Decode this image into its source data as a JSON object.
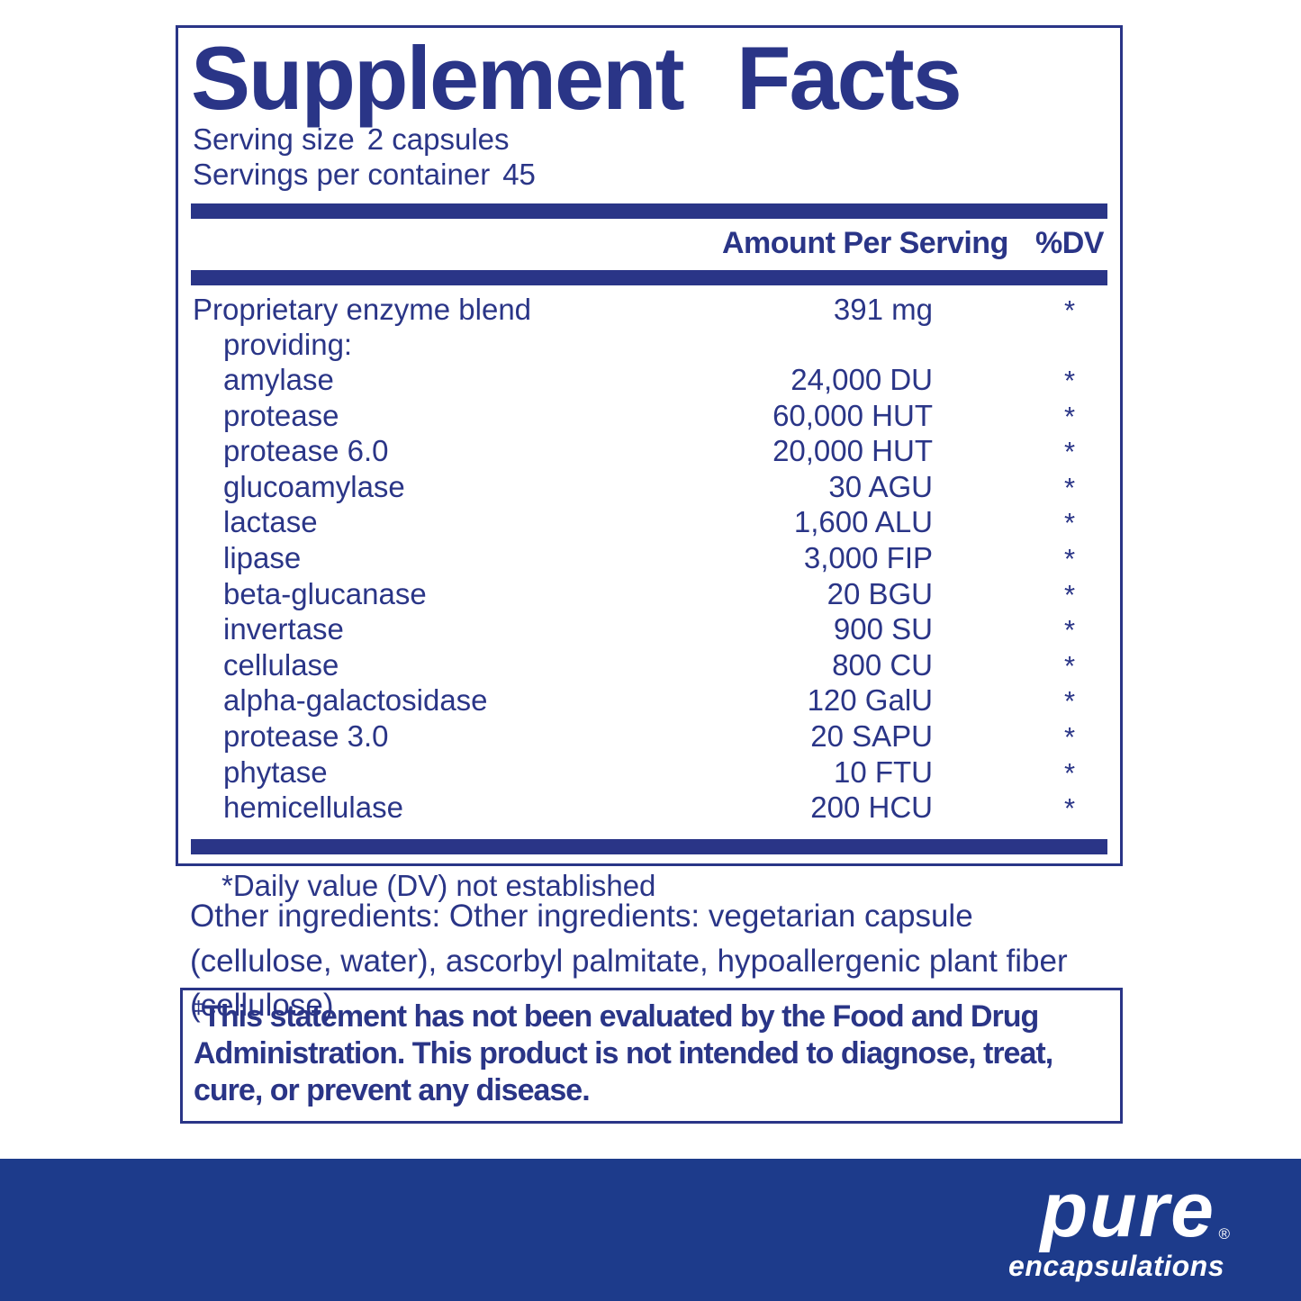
{
  "panel": {
    "title": "Supplement Facts",
    "serving_size_label": "Serving size",
    "serving_size_value": "2 capsules",
    "servings_per_container_label": "Servings per container",
    "servings_per_container_value": "45",
    "columns": {
      "amount": "Amount Per Serving",
      "dv": "%DV"
    },
    "rows": [
      {
        "name": "Proprietary enzyme blend",
        "amount": "391 mg",
        "dv": "*",
        "indent": false
      },
      {
        "name": "providing:",
        "amount": "",
        "dv": "",
        "indent": true
      },
      {
        "name": "amylase",
        "amount": "24,000 DU",
        "dv": "*",
        "indent": true
      },
      {
        "name": "protease",
        "amount": "60,000 HUT",
        "dv": "*",
        "indent": true
      },
      {
        "name": "protease 6.0",
        "amount": "20,000 HUT",
        "dv": "*",
        "indent": true
      },
      {
        "name": "glucoamylase",
        "amount": "30 AGU",
        "dv": "*",
        "indent": true
      },
      {
        "name": "lactase",
        "amount": "1,600 ALU",
        "dv": "*",
        "indent": true
      },
      {
        "name": "lipase",
        "amount": "3,000 FIP",
        "dv": "*",
        "indent": true
      },
      {
        "name": "beta-glucanase",
        "amount": "20 BGU",
        "dv": "*",
        "indent": true
      },
      {
        "name": "invertase",
        "amount": "900 SU",
        "dv": "*",
        "indent": true
      },
      {
        "name": "cellulase",
        "amount": "800 CU",
        "dv": "*",
        "indent": true
      },
      {
        "name": "alpha-galactosidase",
        "amount": "120 GalU",
        "dv": "*",
        "indent": true
      },
      {
        "name": "protease 3.0",
        "amount": "20 SAPU",
        "dv": "*",
        "indent": true
      },
      {
        "name": "phytase",
        "amount": "10 FTU",
        "dv": "*",
        "indent": true
      },
      {
        "name": "hemicellulase",
        "amount": "200 HCU",
        "dv": "*",
        "indent": true
      }
    ],
    "footnote": "*Daily value (DV) not established"
  },
  "other_ingredients": "Other ingredients: Other ingredients: vegetarian capsule (cellulose, water), ascorbyl palmitate, hypoallergenic plant fiber (cellulose)",
  "disclaimer": {
    "dagger": "‡",
    "text": "This statement has not been evaluated by the Food and Drug Administration. This product is not intended to diagnose, treat, cure, or prevent any disease."
  },
  "brand": {
    "name": "pure",
    "subname": "encapsulations",
    "registered": "®"
  },
  "colors": {
    "navy": "#2a3587",
    "footer_band": "#1d3b8b",
    "text_on_band": "#ffffff",
    "background": "#ffffff"
  }
}
